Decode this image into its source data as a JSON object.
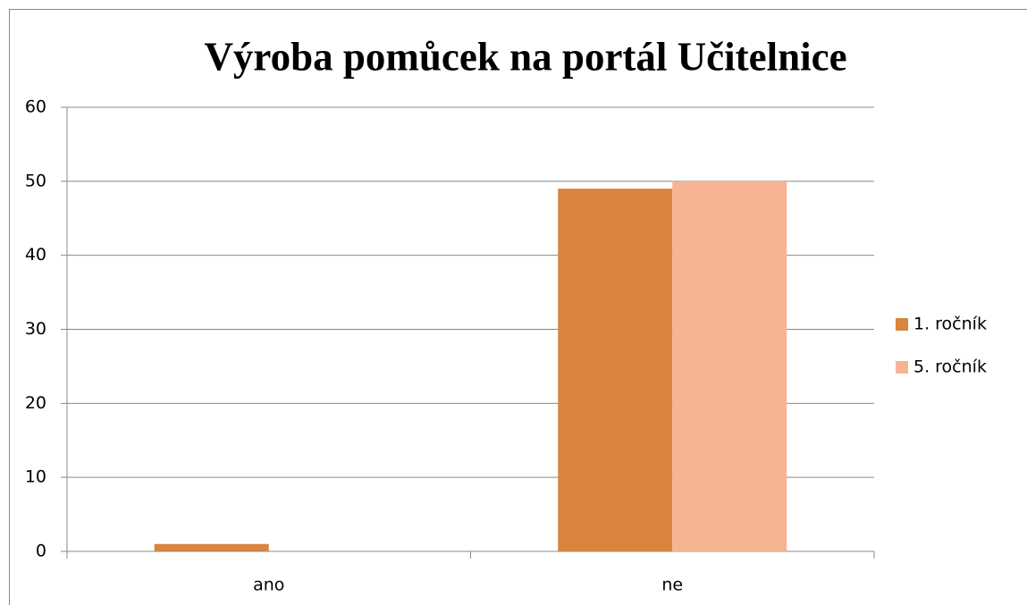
{
  "chart_data": {
    "type": "bar",
    "title": "Výroba pomůcek na portál Učitelnice",
    "categories": [
      "ano",
      "ne"
    ],
    "series": [
      {
        "name": "1. ročník",
        "color": "#d9843f",
        "values": [
          1,
          49
        ]
      },
      {
        "name": "5. ročník",
        "color": "#f7b493",
        "values": [
          0,
          50
        ]
      }
    ],
    "ylim": [
      0,
      60
    ],
    "yticks": [
      0,
      10,
      20,
      30,
      40,
      50,
      60
    ],
    "grid": true,
    "legend": "right"
  }
}
